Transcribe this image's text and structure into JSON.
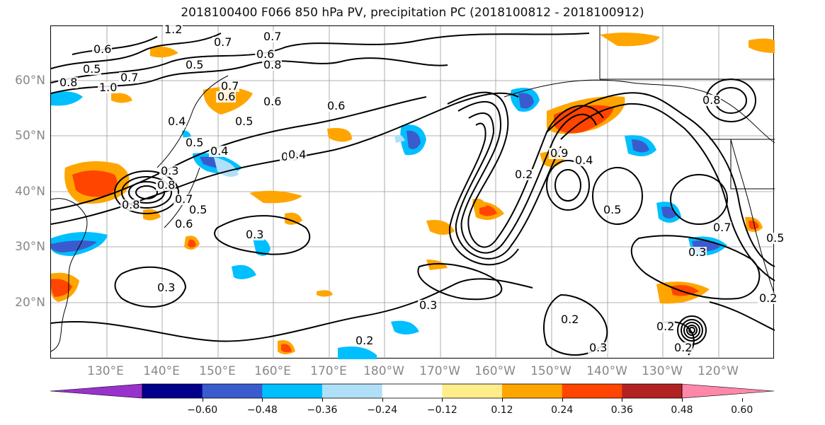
{
  "title": "2018100400 F066 850 hPa PV, precipitation PC (2018100812 - 2018100912)",
  "lat_labels": [
    "60°N",
    "50°N",
    "40°N",
    "30°N",
    "20°N"
  ],
  "lon_labels": [
    "130°E",
    "140°E",
    "150°E",
    "160°E",
    "170°E",
    "180°W",
    "170°W",
    "160°W",
    "150°W",
    "140°W",
    "130°W",
    "120°W"
  ],
  "colorbar": {
    "colors": [
      "#9932cc",
      "#00008b",
      "#3a5bcd",
      "#00bfff",
      "#b0e0f8",
      "#ffffff",
      "#ffec8b",
      "#ffa500",
      "#ff4500",
      "#b22222",
      "#ff88aa"
    ],
    "ticks": [
      "−0.60",
      "−0.48",
      "−0.36",
      "−0.24",
      "−0.12",
      "0.12",
      "0.24",
      "0.36",
      "0.48",
      "0.60"
    ]
  },
  "contour_labels": [
    "0.6",
    "0.5",
    "0.7",
    "0.8",
    "1.0",
    "1.2",
    "0.6",
    "0.5",
    "0.7",
    "0.6",
    "0.4",
    "0.5",
    "0.4",
    "0.3",
    "0.6",
    "0.4",
    "0.7",
    "0.6",
    "0.8",
    "0.7",
    "0.5",
    "0.3",
    "0.8",
    "0.7",
    "0.5",
    "0.8",
    "0.6",
    "0.3",
    "0.3",
    "0.3",
    "0.2",
    "0.2",
    "0.3",
    "0.2",
    "0.2",
    "0.5",
    "0.4",
    "0.2",
    "0.9",
    "0.8",
    "0.7",
    "0.5",
    "0.3",
    "0.2"
  ]
}
